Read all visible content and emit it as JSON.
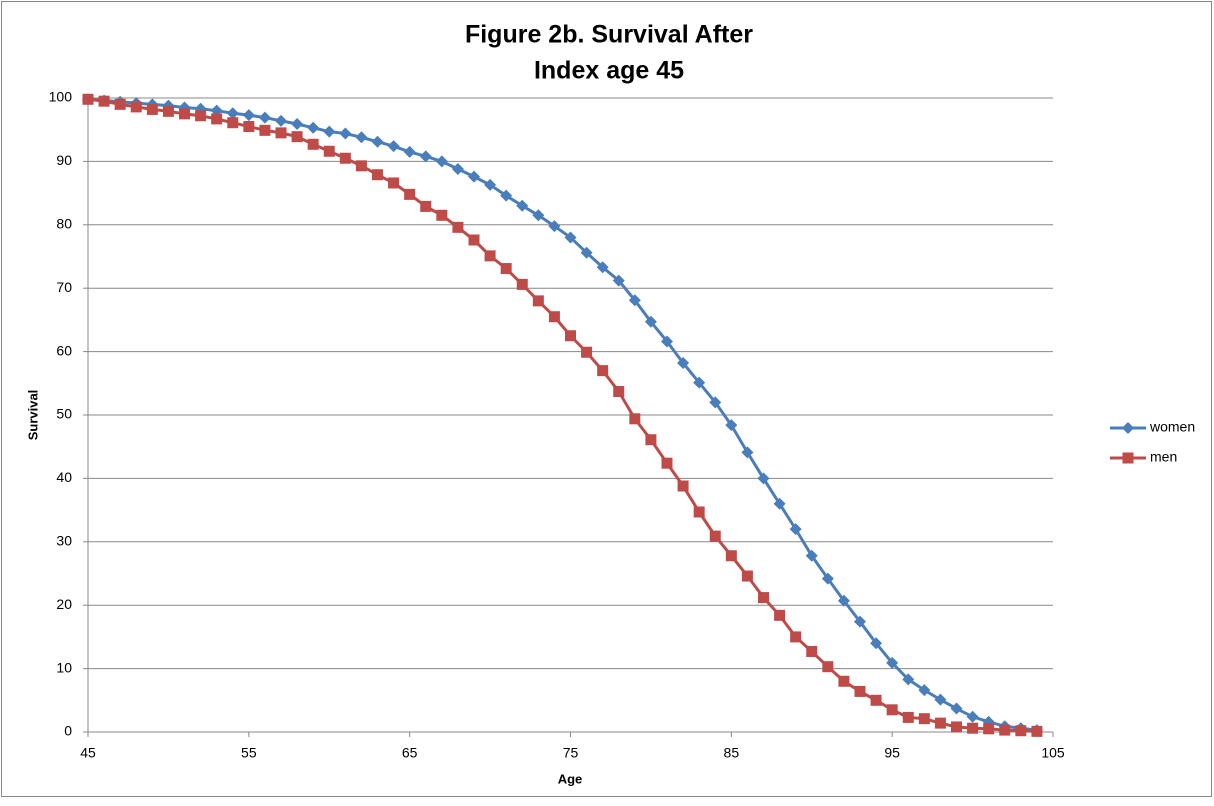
{
  "chart_data": {
    "type": "line",
    "title": [
      "Figure 2b. Survival After",
      "Index age 45"
    ],
    "xlabel": "Age",
    "ylabel": "Survival",
    "x": [
      45,
      46,
      47,
      48,
      49,
      50,
      51,
      52,
      53,
      54,
      55,
      56,
      57,
      58,
      59,
      60,
      61,
      62,
      63,
      64,
      65,
      66,
      67,
      68,
      69,
      70,
      71,
      72,
      73,
      74,
      75,
      76,
      77,
      78,
      79,
      80,
      81,
      82,
      83,
      84,
      85,
      86,
      87,
      88,
      89,
      90,
      91,
      92,
      93,
      94,
      95,
      96,
      97,
      98,
      99,
      100,
      101,
      102,
      103,
      104
    ],
    "series": [
      {
        "name": "women",
        "color": "#4a7ebb",
        "marker": "diamond",
        "values": [
          99.8,
          99.6,
          99.4,
          99.2,
          99.0,
          98.8,
          98.5,
          98.3,
          98.0,
          97.6,
          97.3,
          96.9,
          96.4,
          95.9,
          95.3,
          94.7,
          94.4,
          93.8,
          93.1,
          92.4,
          91.5,
          90.8,
          90.0,
          88.8,
          87.6,
          86.3,
          84.6,
          83.0,
          81.5,
          79.8,
          78.0,
          75.6,
          73.3,
          71.2,
          68.1,
          64.7,
          61.6,
          58.2,
          55.1,
          52.0,
          48.4,
          44.1,
          40.0,
          36.0,
          32.0,
          27.8,
          24.2,
          20.7,
          17.4,
          14.0,
          10.9,
          8.3,
          6.6,
          5.1,
          3.7,
          2.4,
          1.6,
          0.9,
          0.6,
          0.3
        ]
      },
      {
        "name": "men",
        "color": "#be4b48",
        "marker": "square",
        "values": [
          99.8,
          99.5,
          99.0,
          98.6,
          98.2,
          97.9,
          97.5,
          97.2,
          96.7,
          96.1,
          95.5,
          94.9,
          94.5,
          93.9,
          92.7,
          91.6,
          90.5,
          89.3,
          87.9,
          86.6,
          84.8,
          82.9,
          81.5,
          79.6,
          77.6,
          75.1,
          73.1,
          70.6,
          68.0,
          65.5,
          62.5,
          59.9,
          57.0,
          53.7,
          49.4,
          46.1,
          42.4,
          38.8,
          34.7,
          30.9,
          27.8,
          24.6,
          21.2,
          18.4,
          15.0,
          12.7,
          10.3,
          8.0,
          6.4,
          5.0,
          3.5,
          2.3,
          2.1,
          1.4,
          0.8,
          0.6,
          0.5,
          0.3,
          0.2,
          0.1
        ]
      }
    ],
    "xlim": [
      45,
      105
    ],
    "xticks": [
      45,
      55,
      65,
      75,
      85,
      95,
      105
    ],
    "ylim": [
      0,
      100
    ],
    "yticks": [
      0,
      10,
      20,
      30,
      40,
      50,
      60,
      70,
      80,
      90,
      100
    ],
    "grid": true,
    "legend": "right"
  }
}
